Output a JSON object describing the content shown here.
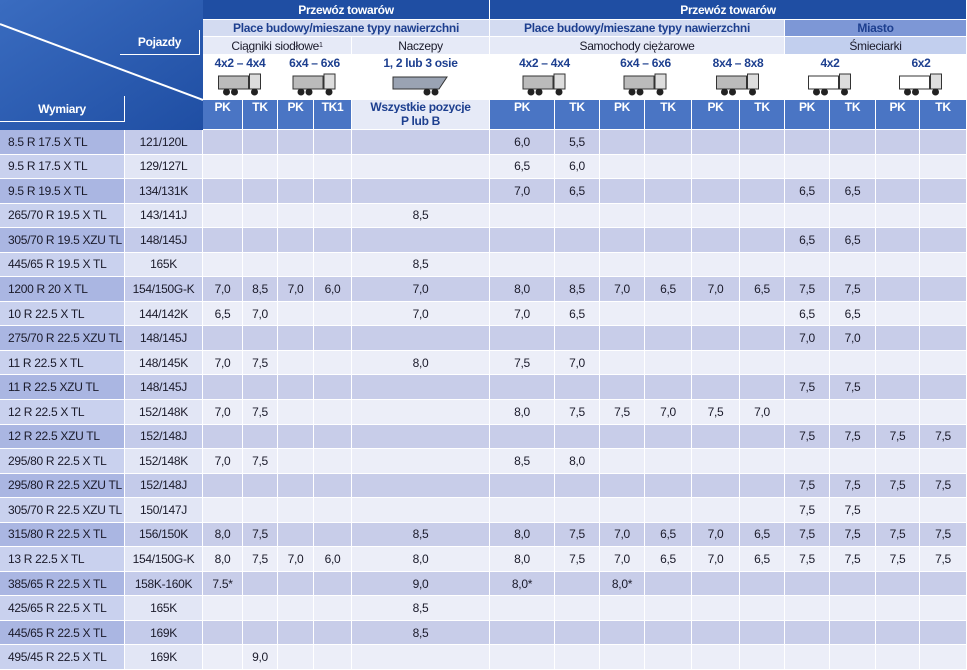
{
  "header": {
    "corner": {
      "vehicles": "Pojazdy",
      "dimensions": "Wymiary"
    },
    "sections": [
      "Przewóz towarów",
      "Przewóz towarów"
    ],
    "groups": [
      "Place budowy/mieszane typy nawierzchni",
      "Place budowy/mieszane typy nawierzchni",
      "Miasto"
    ],
    "subgroups": [
      {
        "label": "Ciągniki siodłowe",
        "note": "1"
      },
      {
        "label": "Naczepy"
      },
      {
        "label": "Samochody ciężarowe"
      },
      {
        "label": "Śmieciarki"
      }
    ],
    "configs": [
      "4x2 – 4x4",
      "6x4 – 6x6",
      "1, 2 lub 3 osie",
      "4x2 – 4x4",
      "6x4 – 6x6",
      "8x4 – 8x8",
      "4x2",
      "6x2"
    ],
    "columns": [
      "PK",
      "TK",
      "PK",
      "TK1",
      [
        "Wszystkie pozycje",
        "P lub B"
      ],
      "PK",
      "TK",
      "PK",
      "TK",
      "PK",
      "TK",
      "PK",
      "TK",
      "PK",
      "TK"
    ]
  },
  "rows": [
    {
      "size": "8.5 R 17.5 X TL",
      "load": "121/120L",
      "values": [
        null,
        null,
        null,
        null,
        null,
        "6,0",
        "5,5",
        null,
        null,
        null,
        null,
        null,
        null,
        null,
        null
      ]
    },
    {
      "size": "9.5 R 17.5 X TL",
      "load": "129/127L",
      "values": [
        null,
        null,
        null,
        null,
        null,
        "6,5",
        "6,0",
        null,
        null,
        null,
        null,
        null,
        null,
        null,
        null
      ]
    },
    {
      "size": "9.5 R 19.5 X TL",
      "load": "134/131K",
      "values": [
        null,
        null,
        null,
        null,
        null,
        "7,0",
        "6,5",
        null,
        null,
        null,
        null,
        "6,5",
        "6,5",
        null,
        null
      ]
    },
    {
      "size": "265/70 R 19.5 X TL",
      "load": "143/141J",
      "values": [
        null,
        null,
        null,
        null,
        "8,5",
        null,
        null,
        null,
        null,
        null,
        null,
        null,
        null,
        null,
        null
      ]
    },
    {
      "size": "305/70 R 19.5 XZU TL",
      "load": "148/145J",
      "values": [
        null,
        null,
        null,
        null,
        null,
        null,
        null,
        null,
        null,
        null,
        null,
        "6,5",
        "6,5",
        null,
        null
      ]
    },
    {
      "size": "445/65 R 19.5 X TL",
      "load": "165K",
      "values": [
        null,
        null,
        null,
        null,
        "8,5",
        null,
        null,
        null,
        null,
        null,
        null,
        null,
        null,
        null,
        null
      ]
    },
    {
      "size": "1200 R 20 X TL",
      "load": "154/150G-K",
      "values": [
        "7,0",
        "8,5",
        "7,0",
        "6,0",
        "7,0",
        "8,0",
        "8,5",
        "7,0",
        "6,5",
        "7,0",
        "6,5",
        "7,5",
        "7,5",
        null,
        null
      ]
    },
    {
      "size": "10 R 22.5 X TL",
      "load": "144/142K",
      "values": [
        "6,5",
        "7,0",
        null,
        null,
        "7,0",
        "7,0",
        "6,5",
        null,
        null,
        null,
        null,
        "6,5",
        "6,5",
        null,
        null
      ]
    },
    {
      "size": "275/70 R 22.5 XZU TL",
      "load": "148/145J",
      "values": [
        null,
        null,
        null,
        null,
        null,
        null,
        null,
        null,
        null,
        null,
        null,
        "7,0",
        "7,0",
        null,
        null
      ]
    },
    {
      "size": "11 R 22.5 X TL",
      "load": "148/145K",
      "values": [
        "7,0",
        "7,5",
        null,
        null,
        "8,0",
        "7,5",
        "7,0",
        null,
        null,
        null,
        null,
        null,
        null,
        null,
        null
      ]
    },
    {
      "size": "11 R 22.5 XZU TL",
      "load": "148/145J",
      "values": [
        null,
        null,
        null,
        null,
        null,
        null,
        null,
        null,
        null,
        null,
        null,
        "7,5",
        "7,5",
        null,
        null
      ]
    },
    {
      "size": "12 R 22.5 X TL",
      "load": "152/148K",
      "values": [
        "7,0",
        "7,5",
        null,
        null,
        null,
        "8,0",
        "7,5",
        "7,5",
        "7,0",
        "7,5",
        "7,0",
        null,
        null,
        null,
        null
      ]
    },
    {
      "size": "12 R 22.5 XZU TL",
      "load": "152/148J",
      "values": [
        null,
        null,
        null,
        null,
        null,
        null,
        null,
        null,
        null,
        null,
        null,
        "7,5",
        "7,5",
        "7,5",
        "7,5"
      ]
    },
    {
      "size": "295/80 R 22.5 X TL",
      "load": "152/148K",
      "values": [
        "7,0",
        "7,5",
        null,
        null,
        null,
        "8,5",
        "8,0",
        null,
        null,
        null,
        null,
        null,
        null,
        null,
        null
      ]
    },
    {
      "size": "295/80 R 22.5 XZU TL",
      "load": "152/148J",
      "values": [
        null,
        null,
        null,
        null,
        null,
        null,
        null,
        null,
        null,
        null,
        null,
        "7,5",
        "7,5",
        "7,5",
        "7,5"
      ]
    },
    {
      "size": "305/70 R 22.5 XZU TL",
      "load": "150/147J",
      "values": [
        null,
        null,
        null,
        null,
        null,
        null,
        null,
        null,
        null,
        null,
        null,
        "7,5",
        "7,5",
        null,
        null
      ]
    },
    {
      "size": "315/80 R 22.5 X TL",
      "load": "156/150K",
      "values": [
        "8,0",
        "7,5",
        null,
        null,
        "8,5",
        "8,0",
        "7,5",
        "7,0",
        "6,5",
        "7,0",
        "6,5",
        "7,5",
        "7,5",
        "7,5",
        "7,5"
      ]
    },
    {
      "size": "13 R 22.5 X TL",
      "load": "154/150G-K",
      "values": [
        "8,0",
        "7,5",
        "7,0",
        "6,0",
        "8,0",
        "8,0",
        "7,5",
        "7,0",
        "6,5",
        "7,0",
        "6,5",
        "7,5",
        "7,5",
        "7,5",
        "7,5"
      ]
    },
    {
      "size": "385/65 R 22.5 X TL",
      "load": "158K-160K",
      "values": [
        "7.5*",
        null,
        null,
        null,
        "9,0",
        "8,0*",
        null,
        "8,0*",
        null,
        null,
        null,
        null,
        null,
        null,
        null
      ]
    },
    {
      "size": "425/65 R 22.5 X TL",
      "load": "165K",
      "values": [
        null,
        null,
        null,
        null,
        "8,5",
        null,
        null,
        null,
        null,
        null,
        null,
        null,
        null,
        null,
        null
      ]
    },
    {
      "size": "445/65 R 22.5 X TL",
      "load": "169K",
      "values": [
        null,
        null,
        null,
        null,
        "8,5",
        null,
        null,
        null,
        null,
        null,
        null,
        null,
        null,
        null,
        null
      ]
    },
    {
      "size": "495/45 R 22.5 X TL",
      "load": "169K",
      "values": [
        null,
        "9,0",
        null,
        null,
        null,
        null,
        null,
        null,
        null,
        null,
        null,
        null,
        null,
        null,
        null
      ]
    }
  ]
}
